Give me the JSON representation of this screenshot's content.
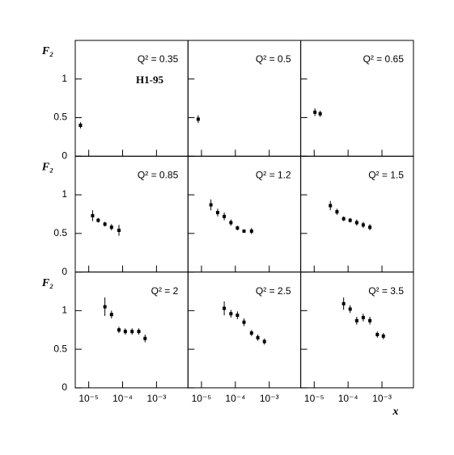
{
  "chart_data": [
    {
      "type": "scatter",
      "annotation": "Q² = 0.35",
      "note": "H1-95",
      "y_label": "F₂",
      "color": "#000000",
      "x": [
        5.7e-06
      ],
      "values": [
        0.4
      ],
      "errors": [
        0.04
      ],
      "xscale": "log",
      "xlim": [
        4e-06,
        0.0085
      ],
      "ylim": [
        0,
        1.5
      ],
      "yticks": [
        0,
        0.5,
        1
      ]
    },
    {
      "type": "scatter",
      "annotation": "Q² = 0.5",
      "color": "#000000",
      "x": [
        8e-06
      ],
      "values": [
        0.48
      ],
      "errors": [
        0.05
      ],
      "xscale": "log",
      "xlim": [
        4e-06,
        0.0085
      ],
      "ylim": [
        0,
        1.5
      ]
    },
    {
      "type": "scatter",
      "annotation": "Q² = 0.65",
      "color": "#000000",
      "x": [
        1.05e-05,
        1.5e-05
      ],
      "values": [
        0.57,
        0.55
      ],
      "errors": [
        0.05,
        0.04
      ],
      "xscale": "log",
      "xlim": [
        4e-06,
        0.0085
      ],
      "ylim": [
        0,
        1.5
      ]
    },
    {
      "type": "scatter",
      "annotation": "Q² = 0.85",
      "y_label": "F₂",
      "color": "#000000",
      "x": [
        1.3e-05,
        1.9e-05,
        3e-05,
        4.7e-05,
        7.8e-05
      ],
      "values": [
        0.73,
        0.67,
        0.62,
        0.58,
        0.54
      ],
      "errors": [
        0.07,
        0.03,
        0.03,
        0.04,
        0.07
      ],
      "xscale": "log",
      "xlim": [
        4e-06,
        0.0085
      ],
      "ylim": [
        0,
        1.5
      ],
      "yticks": [
        0,
        0.5,
        1
      ]
    },
    {
      "type": "scatter",
      "annotation": "Q² = 1.2",
      "color": "#000000",
      "x": [
        1.9e-05,
        3e-05,
        4.7e-05,
        7.4e-05,
        0.000115,
        0.00018,
        0.0003
      ],
      "values": [
        0.87,
        0.77,
        0.72,
        0.64,
        0.57,
        0.53,
        0.53
      ],
      "errors": [
        0.07,
        0.05,
        0.05,
        0.04,
        0.03,
        0.02,
        0.04
      ],
      "xscale": "log",
      "xlim": [
        4e-06,
        0.0085
      ],
      "ylim": [
        0,
        1.5
      ]
    },
    {
      "type": "scatter",
      "annotation": "Q² = 1.5",
      "color": "#000000",
      "x": [
        3e-05,
        4.7e-05,
        7.4e-05,
        0.000115,
        0.00018,
        0.00028,
        0.00044
      ],
      "values": [
        0.86,
        0.78,
        0.69,
        0.67,
        0.64,
        0.61,
        0.58
      ],
      "errors": [
        0.06,
        0.04,
        0.03,
        0.03,
        0.04,
        0.04,
        0.04
      ],
      "xscale": "log",
      "xlim": [
        4e-06,
        0.0085
      ],
      "ylim": [
        0,
        1.5
      ]
    },
    {
      "type": "scatter",
      "annotation": "Q² = 2",
      "y_label": "F₂",
      "color": "#000000",
      "x": [
        3e-05,
        4.7e-05,
        7.8e-05,
        0.00012,
        0.00019,
        0.0003,
        0.00046
      ],
      "values": [
        1.05,
        0.95,
        0.75,
        0.73,
        0.73,
        0.73,
        0.64
      ],
      "errors": [
        0.12,
        0.05,
        0.04,
        0.04,
        0.04,
        0.04,
        0.05
      ],
      "xscale": "log",
      "xlim": [
        4e-06,
        0.0085
      ],
      "ylim": [
        0,
        1.5
      ],
      "yticks": [
        0,
        0.5,
        1
      ],
      "xticks": [
        {
          "value": 1e-05,
          "label": "10⁻⁵"
        },
        {
          "value": 0.0001,
          "label": "10⁻⁴"
        },
        {
          "value": 0.001,
          "label": "10⁻³"
        }
      ]
    },
    {
      "type": "scatter",
      "annotation": "Q² = 2.5",
      "color": "#000000",
      "x": [
        4.7e-05,
        7.4e-05,
        0.000115,
        0.00018,
        0.0003,
        0.00046,
        0.00072
      ],
      "values": [
        1.03,
        0.96,
        0.94,
        0.85,
        0.71,
        0.65,
        0.6
      ],
      "errors": [
        0.09,
        0.05,
        0.05,
        0.05,
        0.04,
        0.04,
        0.04
      ],
      "xscale": "log",
      "xlim": [
        4e-06,
        0.0085
      ],
      "ylim": [
        0,
        1.5
      ],
      "xticks": [
        {
          "value": 1e-05,
          "label": "10⁻⁵"
        },
        {
          "value": 0.0001,
          "label": "10⁻⁴"
        },
        {
          "value": 0.001,
          "label": "10⁻³"
        }
      ]
    },
    {
      "type": "scatter",
      "annotation": "Q² = 3.5",
      "x_label": "x",
      "color": "#000000",
      "x": [
        7.4e-05,
        0.000115,
        0.00018,
        0.00028,
        0.00044,
        0.00073,
        0.0011
      ],
      "values": [
        1.09,
        1.02,
        0.87,
        0.91,
        0.87,
        0.69,
        0.67
      ],
      "errors": [
        0.08,
        0.05,
        0.05,
        0.05,
        0.05,
        0.04,
        0.04
      ],
      "xscale": "log",
      "xlim": [
        4e-06,
        0.0085
      ],
      "ylim": [
        0,
        1.5
      ],
      "xticks": [
        {
          "value": 1e-05,
          "label": "10⁻⁵"
        },
        {
          "value": 0.0001,
          "label": "10⁻⁴"
        },
        {
          "value": 0.001,
          "label": "10⁻³"
        }
      ]
    }
  ]
}
